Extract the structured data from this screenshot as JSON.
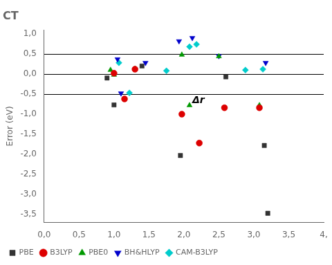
{
  "chart_data": {
    "type": "scatter",
    "title": "CT",
    "ylabel": "Error (eV)",
    "xlim": [
      0.0,
      4.0
    ],
    "ylim": [
      -3.7,
      1.1
    ],
    "xticks": [
      {
        "value": 0.0,
        "label": "0,0"
      },
      {
        "value": 0.5,
        "label": "0,5"
      },
      {
        "value": 1.0,
        "label": "1,0"
      },
      {
        "value": 1.5,
        "label": "1,5"
      },
      {
        "value": 2.0,
        "label": "2,0"
      },
      {
        "value": 2.5,
        "label": "2,5"
      },
      {
        "value": 3.0,
        "label": "3,0"
      },
      {
        "value": 3.5,
        "label": "3,5"
      },
      {
        "value": 4.0,
        "label": "4,"
      }
    ],
    "yticks": [
      {
        "value": 1.0,
        "label": "1,0"
      },
      {
        "value": 0.5,
        "label": "0,5"
      },
      {
        "value": 0.0,
        "label": "0,0"
      },
      {
        "value": -0.5,
        "label": "-0,5"
      },
      {
        "value": -1.0,
        "label": "-1,0"
      },
      {
        "value": -1.5,
        "label": "-1,5"
      },
      {
        "value": -2.0,
        "label": "-2,0"
      },
      {
        "value": -2.5,
        "label": "-2,5"
      },
      {
        "value": -3.0,
        "label": "-3,0"
      },
      {
        "value": -3.5,
        "label": "-3,5"
      }
    ],
    "hlines": [
      0.5,
      0.0,
      -0.5
    ],
    "annotations": [
      {
        "text": "Δr",
        "x": 2.12,
        "y": -0.73
      }
    ],
    "grid": false,
    "legend": "lower left",
    "series": [
      {
        "name": "PBE",
        "color": "#333333",
        "marker": "square",
        "x": [
          0.9,
          1.0,
          1.4,
          1.95,
          2.6,
          3.15,
          3.2
        ],
        "values": [
          -0.1,
          -0.77,
          0.2,
          -2.03,
          -0.07,
          -1.78,
          -3.47
        ]
      },
      {
        "name": "B3LYP",
        "color": "#dd0000",
        "marker": "circle",
        "x": [
          1.0,
          1.15,
          1.3,
          1.97,
          2.22,
          2.58,
          3.08
        ],
        "values": [
          0.02,
          -0.62,
          0.12,
          -1.0,
          -1.72,
          -0.84,
          -0.84
        ]
      },
      {
        "name": "PBE0",
        "color": "#009900",
        "marker": "triangle-up",
        "x": [
          0.95,
          1.0,
          1.3,
          1.97,
          2.08,
          2.5,
          3.08
        ],
        "values": [
          0.1,
          -0.02,
          0.13,
          0.48,
          -0.78,
          0.44,
          -0.78
        ]
      },
      {
        "name": "BH&HLYP",
        "color": "#0000cc",
        "marker": "triangle-down",
        "x": [
          1.05,
          1.1,
          1.45,
          1.93,
          2.12,
          2.5,
          3.17
        ],
        "values": [
          0.37,
          -0.48,
          0.28,
          0.82,
          0.9,
          0.45,
          0.28
        ]
      },
      {
        "name": "CAM-B3LYP",
        "color": "#00cccc",
        "marker": "diamond",
        "x": [
          1.07,
          1.22,
          1.75,
          2.08,
          2.18,
          2.88,
          3.13
        ],
        "values": [
          0.28,
          -0.47,
          0.08,
          0.68,
          0.74,
          0.1,
          0.12
        ]
      }
    ]
  }
}
